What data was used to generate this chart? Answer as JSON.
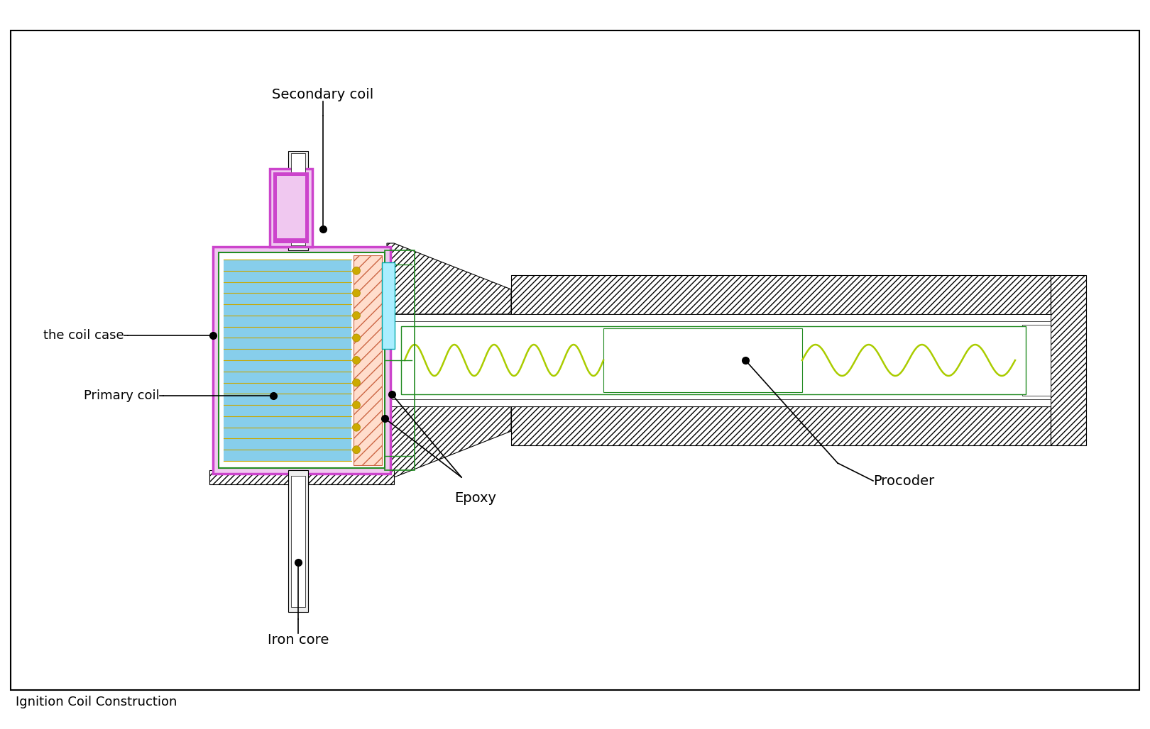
{
  "title": "Ignition Coil Construction",
  "bg": "#ffffff",
  "border": "#000000",
  "labels": {
    "secondary_coil": "Secondary coil",
    "coil_case": "the coil case",
    "primary_coil": "Primary coil",
    "iron_core": "Iron core",
    "epoxy": "Epoxy",
    "procoder": "Procoder"
  },
  "colors": {
    "hatch_face": "#ffffff",
    "hatch_edge": "#000000",
    "primary_blue": "#87ceeb",
    "primary_lines": "#c8a800",
    "magenta": "#cc44cc",
    "magenta_light": "#f0c8f0",
    "green": "#228b22",
    "green_light": "#90ee90",
    "teal": "#00aaaa",
    "teal_light": "#aaeeff",
    "spring": "#aacc00",
    "gold": "#ccaa00",
    "pink_hatch": "#ffdddd",
    "gray_light": "#dddddd",
    "inner_white": "#ffffff"
  },
  "figsize": [
    16.2,
    10.28
  ],
  "dpi": 100
}
